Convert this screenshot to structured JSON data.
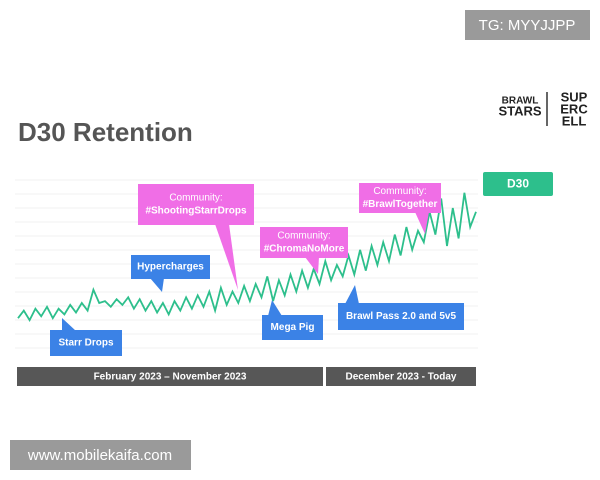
{
  "header": {
    "tag": "TG: MYYJJPP",
    "logo_left": [
      "BRAWL",
      "STARS"
    ],
    "logo_right": [
      "SUP",
      "ERC",
      "ELL"
    ]
  },
  "chart_data": {
    "type": "line",
    "title": "D30 Retention",
    "series": [
      {
        "name": "D30",
        "color": "#2dbf8c",
        "values": [
          22,
          26,
          21,
          27,
          23,
          28,
          22,
          27,
          24,
          29,
          25,
          30,
          26,
          37,
          30,
          31,
          28,
          32,
          29,
          33,
          27,
          32,
          26,
          31,
          25,
          30,
          24,
          31,
          26,
          33,
          27,
          34,
          28,
          36,
          26,
          38,
          29,
          36,
          30,
          39,
          31,
          40,
          33,
          44,
          31,
          42,
          34,
          45,
          36,
          47,
          38,
          48,
          40,
          52,
          42,
          50,
          44,
          55,
          45,
          58,
          47,
          60,
          50,
          62,
          52,
          66,
          55,
          70,
          58,
          68,
          62,
          78,
          66,
          85,
          60,
          80,
          64,
          88,
          70,
          78
        ]
      }
    ],
    "ylim": [
      0,
      100
    ],
    "annotations": [
      {
        "lines": [
          "Starr Drops"
        ],
        "color": "#3b82e6"
      },
      {
        "lines": [
          "Hypercharges"
        ],
        "color": "#3b82e6"
      },
      {
        "lines": [
          "Community:",
          "#ShootingStarrDrops"
        ],
        "color": "#f06ee6"
      },
      {
        "lines": [
          "Community:",
          "#ChromaNoMore"
        ],
        "color": "#f06ee6"
      },
      {
        "lines": [
          "Mega Pig"
        ],
        "color": "#3b82e6"
      },
      {
        "lines": [
          "Brawl Pass 2.0 and 5v5"
        ],
        "color": "#3b82e6"
      },
      {
        "lines": [
          "Community:",
          "#BrawlTogether"
        ],
        "color": "#f06ee6"
      }
    ],
    "periods": [
      "February 2023 – November 2023",
      "December 2023 - Today"
    ]
  },
  "footer": {
    "watermark": "www.mobilekaifa.com"
  }
}
